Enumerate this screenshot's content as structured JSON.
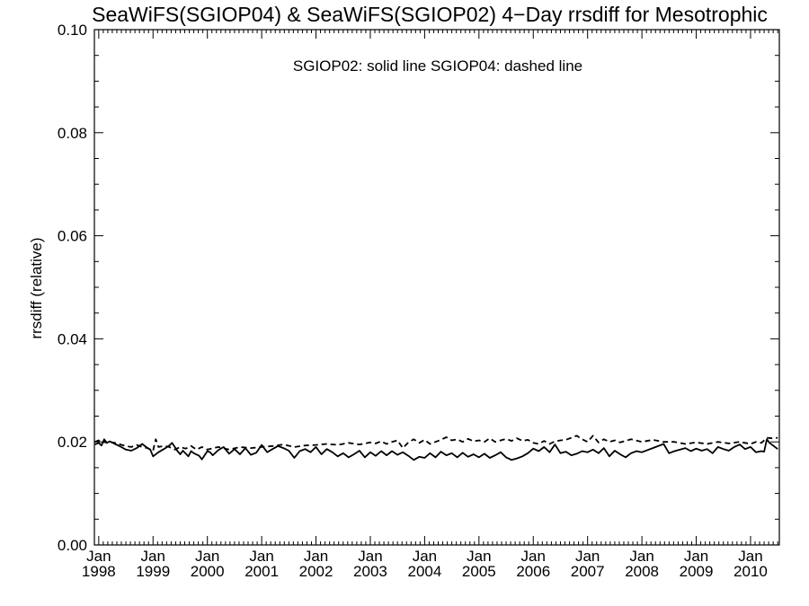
{
  "chart_data": {
    "type": "line",
    "title": "SeaWiFS(SGIOP04) & SeaWiFS(SGIOP02) 4−Day rrsdiff for Mesotrophic",
    "subtitle": "SGIOP02: solid line   SGIOP04: dashed line",
    "xlabel": "",
    "ylabel": "rrsdiff (relative)",
    "xlim": [
      1997.92,
      2010.53
    ],
    "ylim": [
      0.0,
      0.1
    ],
    "grid": false,
    "y_ticks": [
      "0.00",
      "0.02",
      "0.04",
      "0.06",
      "0.08",
      "0.10"
    ],
    "x_ticks": [
      {
        "month": "Jan",
        "year": "1998"
      },
      {
        "month": "Jan",
        "year": "1999"
      },
      {
        "month": "Jan",
        "year": "2000"
      },
      {
        "month": "Jan",
        "year": "2001"
      },
      {
        "month": "Jan",
        "year": "2002"
      },
      {
        "month": "Jan",
        "year": "2003"
      },
      {
        "month": "Jan",
        "year": "2004"
      },
      {
        "month": "Jan",
        "year": "2005"
      },
      {
        "month": "Jan",
        "year": "2006"
      },
      {
        "month": "Jan",
        "year": "2007"
      },
      {
        "month": "Jan",
        "year": "2008"
      },
      {
        "month": "Jan",
        "year": "2009"
      },
      {
        "month": "Jan",
        "year": "2010"
      }
    ],
    "series": [
      {
        "style": "solid",
        "x": [
          1997.93,
          1998.0,
          1998.05,
          1998.1,
          1998.15,
          1998.2,
          1998.3,
          1998.4,
          1998.5,
          1998.6,
          1998.7,
          1998.8,
          1998.9,
          1998.95,
          1999.0,
          1999.1,
          1999.2,
          1999.3,
          1999.35,
          1999.45,
          1999.5,
          1999.55,
          1999.65,
          1999.7,
          1999.75,
          1999.85,
          1999.9,
          2000.0,
          2000.05,
          2000.1,
          2000.2,
          2000.3,
          2000.4,
          2000.5,
          2000.6,
          2000.7,
          2000.8,
          2000.9,
          2001.0,
          2001.1,
          2001.2,
          2001.3,
          2001.4,
          2001.5,
          2001.6,
          2001.7,
          2001.8,
          2001.9,
          2002.0,
          2002.1,
          2002.2,
          2002.3,
          2002.4,
          2002.5,
          2002.6,
          2002.7,
          2002.8,
          2002.9,
          2003.0,
          2003.1,
          2003.2,
          2003.3,
          2003.4,
          2003.5,
          2003.6,
          2003.7,
          2003.8,
          2003.9,
          2004.0,
          2004.1,
          2004.2,
          2004.3,
          2004.4,
          2004.5,
          2004.6,
          2004.7,
          2004.8,
          2004.9,
          2005.0,
          2005.1,
          2005.2,
          2005.3,
          2005.4,
          2005.5,
          2005.6,
          2005.7,
          2005.8,
          2005.9,
          2006.0,
          2006.1,
          2006.2,
          2006.3,
          2006.4,
          2006.5,
          2006.6,
          2006.7,
          2006.8,
          2006.9,
          2007.0,
          2007.1,
          2007.2,
          2007.3,
          2007.4,
          2007.5,
          2007.6,
          2007.7,
          2007.8,
          2007.9,
          2008.0,
          2008.2,
          2008.4,
          2008.5,
          2008.6,
          2008.8,
          2008.9,
          2009.0,
          2009.1,
          2009.2,
          2009.3,
          2009.4,
          2009.5,
          2009.6,
          2009.7,
          2009.8,
          2009.9,
          2010.0,
          2010.1,
          2010.2,
          2010.25,
          2010.3,
          2010.35,
          2010.45,
          2010.5
        ],
        "y": [
          0.0195,
          0.0198,
          0.0193,
          0.0205,
          0.0198,
          0.0201,
          0.0196,
          0.0191,
          0.0185,
          0.0183,
          0.0188,
          0.0196,
          0.0188,
          0.0185,
          0.0172,
          0.018,
          0.0186,
          0.0193,
          0.0198,
          0.0182,
          0.0176,
          0.0183,
          0.0172,
          0.0182,
          0.0178,
          0.0173,
          0.0166,
          0.0182,
          0.018,
          0.0174,
          0.0184,
          0.019,
          0.0177,
          0.0186,
          0.0176,
          0.0188,
          0.0175,
          0.0179,
          0.0194,
          0.018,
          0.0186,
          0.0192,
          0.0188,
          0.0183,
          0.0169,
          0.0182,
          0.0186,
          0.018,
          0.019,
          0.0176,
          0.0186,
          0.018,
          0.0172,
          0.0178,
          0.017,
          0.0176,
          0.0183,
          0.017,
          0.018,
          0.0173,
          0.0182,
          0.0174,
          0.0182,
          0.0175,
          0.018,
          0.0173,
          0.0165,
          0.0171,
          0.0169,
          0.0178,
          0.017,
          0.0181,
          0.0174,
          0.0178,
          0.017,
          0.0179,
          0.0171,
          0.0176,
          0.017,
          0.0177,
          0.0169,
          0.0174,
          0.018,
          0.017,
          0.0165,
          0.0168,
          0.0172,
          0.0178,
          0.0187,
          0.0182,
          0.019,
          0.018,
          0.0195,
          0.0178,
          0.0181,
          0.0174,
          0.0177,
          0.0182,
          0.018,
          0.0185,
          0.0178,
          0.0188,
          0.0172,
          0.0183,
          0.0176,
          0.017,
          0.0178,
          0.0182,
          0.018,
          0.0188,
          0.0196,
          0.0178,
          0.0182,
          0.0188,
          0.0182,
          0.0187,
          0.0183,
          0.0186,
          0.0178,
          0.019,
          0.0186,
          0.0183,
          0.019,
          0.0195,
          0.0186,
          0.019,
          0.018,
          0.0182,
          0.0181,
          0.0205,
          0.0198,
          0.019,
          0.0186
        ]
      },
      {
        "style": "dashed",
        "x": [
          1997.93,
          1998.0,
          1998.05,
          1998.1,
          1998.15,
          1998.2,
          1998.3,
          1998.4,
          1998.5,
          1998.6,
          1998.7,
          1998.8,
          1998.9,
          1999.0,
          1999.05,
          1999.1,
          1999.2,
          1999.3,
          1999.4,
          1999.5,
          1999.6,
          1999.7,
          1999.8,
          1999.9,
          2000.0,
          2000.2,
          2000.4,
          2000.6,
          2000.8,
          2001.0,
          2001.2,
          2001.4,
          2001.6,
          2001.8,
          2002.0,
          2002.2,
          2002.4,
          2002.6,
          2002.8,
          2003.0,
          2003.1,
          2003.2,
          2003.3,
          2003.4,
          2003.5,
          2003.6,
          2003.7,
          2003.8,
          2003.9,
          2004.0,
          2004.1,
          2004.2,
          2004.3,
          2004.4,
          2004.5,
          2004.6,
          2004.7,
          2004.8,
          2004.9,
          2005.0,
          2005.1,
          2005.2,
          2005.3,
          2005.4,
          2005.5,
          2005.6,
          2005.7,
          2005.8,
          2005.9,
          2006.0,
          2006.1,
          2006.2,
          2006.3,
          2006.4,
          2006.5,
          2006.6,
          2006.7,
          2006.8,
          2006.9,
          2007.0,
          2007.1,
          2007.2,
          2007.3,
          2007.4,
          2007.5,
          2007.6,
          2007.8,
          2008.0,
          2008.2,
          2008.4,
          2008.6,
          2008.8,
          2009.0,
          2009.2,
          2009.4,
          2009.6,
          2009.8,
          2010.0,
          2010.1,
          2010.2,
          2010.3,
          2010.4,
          2010.5
        ],
        "y": [
          0.02,
          0.0203,
          0.0197,
          0.02,
          0.0198,
          0.02,
          0.0198,
          0.0195,
          0.0192,
          0.019,
          0.0194,
          0.019,
          0.0188,
          0.0183,
          0.0205,
          0.019,
          0.0192,
          0.019,
          0.0185,
          0.019,
          0.0187,
          0.0192,
          0.0185,
          0.019,
          0.0185,
          0.019,
          0.0185,
          0.019,
          0.0188,
          0.019,
          0.0192,
          0.0195,
          0.019,
          0.0193,
          0.0194,
          0.0196,
          0.0194,
          0.0198,
          0.0195,
          0.0199,
          0.0197,
          0.0201,
          0.0196,
          0.02,
          0.0203,
          0.0188,
          0.0199,
          0.0205,
          0.0198,
          0.0204,
          0.0196,
          0.02,
          0.0204,
          0.0209,
          0.0203,
          0.0205,
          0.02,
          0.0206,
          0.0201,
          0.0203,
          0.02,
          0.0207,
          0.02,
          0.0203,
          0.0206,
          0.0202,
          0.0207,
          0.0202,
          0.0204,
          0.0198,
          0.0196,
          0.0202,
          0.0196,
          0.0201,
          0.0203,
          0.0204,
          0.0208,
          0.0212,
          0.0205,
          0.02,
          0.0212,
          0.0199,
          0.0205,
          0.02,
          0.0203,
          0.0199,
          0.0205,
          0.02,
          0.0204,
          0.02,
          0.02,
          0.0196,
          0.0199,
          0.0196,
          0.02,
          0.0197,
          0.02,
          0.0196,
          0.02,
          0.0198,
          0.0208,
          0.0207,
          0.0208
        ]
      }
    ]
  }
}
